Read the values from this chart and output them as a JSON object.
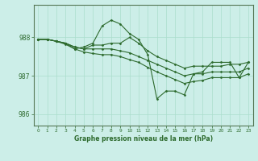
{
  "title": "Graphe pression niveau de la mer (hPa)",
  "bg_color": "#cceee8",
  "line_color": "#2d6a2d",
  "grid_color_v": "#aaddcc",
  "grid_color_h": "#aaddcc",
  "xlim": [
    -0.5,
    23.5
  ],
  "ylim": [
    985.7,
    988.85
  ],
  "yticks": [
    986,
    987,
    988
  ],
  "xticks": [
    0,
    1,
    2,
    3,
    4,
    5,
    6,
    7,
    8,
    9,
    10,
    11,
    12,
    13,
    14,
    15,
    16,
    17,
    18,
    19,
    20,
    21,
    22,
    23
  ],
  "series": [
    {
      "x": [
        0,
        1,
        2,
        3,
        4,
        5,
        6,
        7,
        8,
        9,
        10,
        11,
        12,
        13,
        14,
        15,
        16,
        17,
        18,
        19,
        20,
        21,
        22,
        23
      ],
      "y": [
        987.95,
        987.95,
        987.9,
        987.85,
        987.7,
        987.75,
        987.85,
        988.3,
        988.45,
        988.35,
        988.1,
        987.95,
        987.55,
        986.4,
        986.6,
        986.6,
        986.5,
        987.05,
        987.1,
        987.35,
        987.35,
        987.35,
        986.95,
        987.35
      ]
    },
    {
      "x": [
        0,
        1,
        2,
        3,
        4,
        5,
        6,
        7,
        8,
        9,
        10,
        11,
        12,
        13,
        14,
        15,
        16,
        17,
        18,
        19,
        20,
        21,
        22,
        23
      ],
      "y": [
        987.95,
        987.95,
        987.9,
        987.85,
        987.75,
        987.7,
        987.8,
        987.8,
        987.85,
        987.85,
        988.0,
        987.85,
        987.65,
        987.5,
        987.4,
        987.3,
        987.2,
        987.25,
        987.25,
        987.25,
        987.25,
        987.3,
        987.3,
        987.35
      ]
    },
    {
      "x": [
        0,
        1,
        2,
        3,
        4,
        5,
        6,
        7,
        8,
        9,
        10,
        11,
        12,
        13,
        14,
        15,
        16,
        17,
        18,
        19,
        20,
        21,
        22,
        23
      ],
      "y": [
        987.95,
        987.95,
        987.9,
        987.85,
        987.75,
        987.7,
        987.7,
        987.7,
        987.7,
        987.65,
        987.6,
        987.5,
        987.4,
        987.3,
        987.2,
        987.1,
        987.0,
        987.05,
        987.05,
        987.1,
        987.1,
        987.1,
        987.1,
        987.2
      ]
    },
    {
      "x": [
        0,
        1,
        2,
        3,
        4,
        5,
        6,
        7,
        8,
        9,
        10,
        11,
        12,
        13,
        14,
        15,
        16,
        17,
        18,
        19,
        20,
        21,
        22,
        23
      ],
      "y": [
        987.95,
        987.95,
        987.9,
        987.82,
        987.7,
        987.62,
        987.58,
        987.55,
        987.55,
        987.5,
        987.42,
        987.35,
        987.22,
        987.1,
        987.0,
        986.9,
        986.8,
        986.85,
        986.88,
        986.95,
        986.95,
        986.95,
        986.95,
        987.05
      ]
    }
  ]
}
